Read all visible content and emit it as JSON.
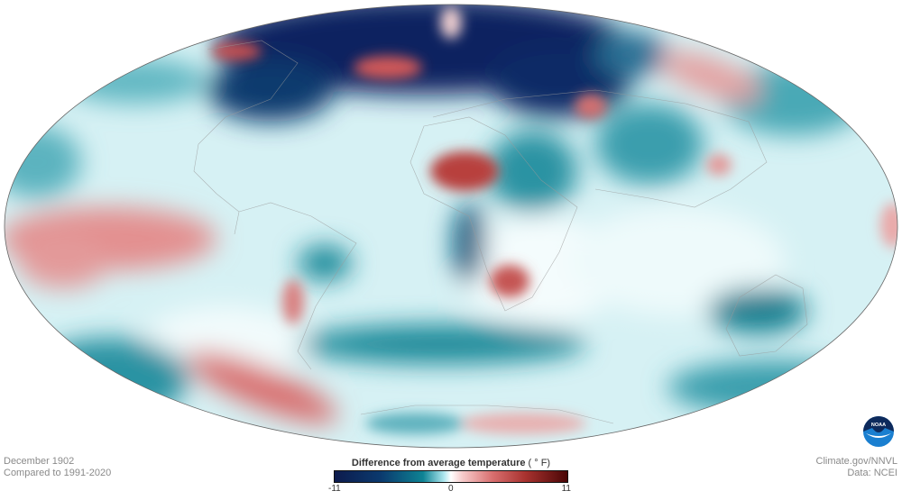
{
  "map": {
    "projection": "Mollweide",
    "ocean_base_color": "#d6f1f4",
    "colors": {
      "cold_extreme": "#0d1b4d",
      "cold": "#0e8394",
      "neutral": "#ffffff",
      "warm": "#d86e6e",
      "warm_extreme": "#4a0606"
    }
  },
  "footer": {
    "date": "December 1902",
    "baseline": "Compared to 1991-2020",
    "source": "Climate.gov/NNVL",
    "data": "Data: NCEI"
  },
  "legend": {
    "title": "Difference from average temperature",
    "unit": "( ° F)",
    "min": "-11",
    "mid": "0",
    "max": "11"
  },
  "logo": {
    "text": "NOAA"
  }
}
